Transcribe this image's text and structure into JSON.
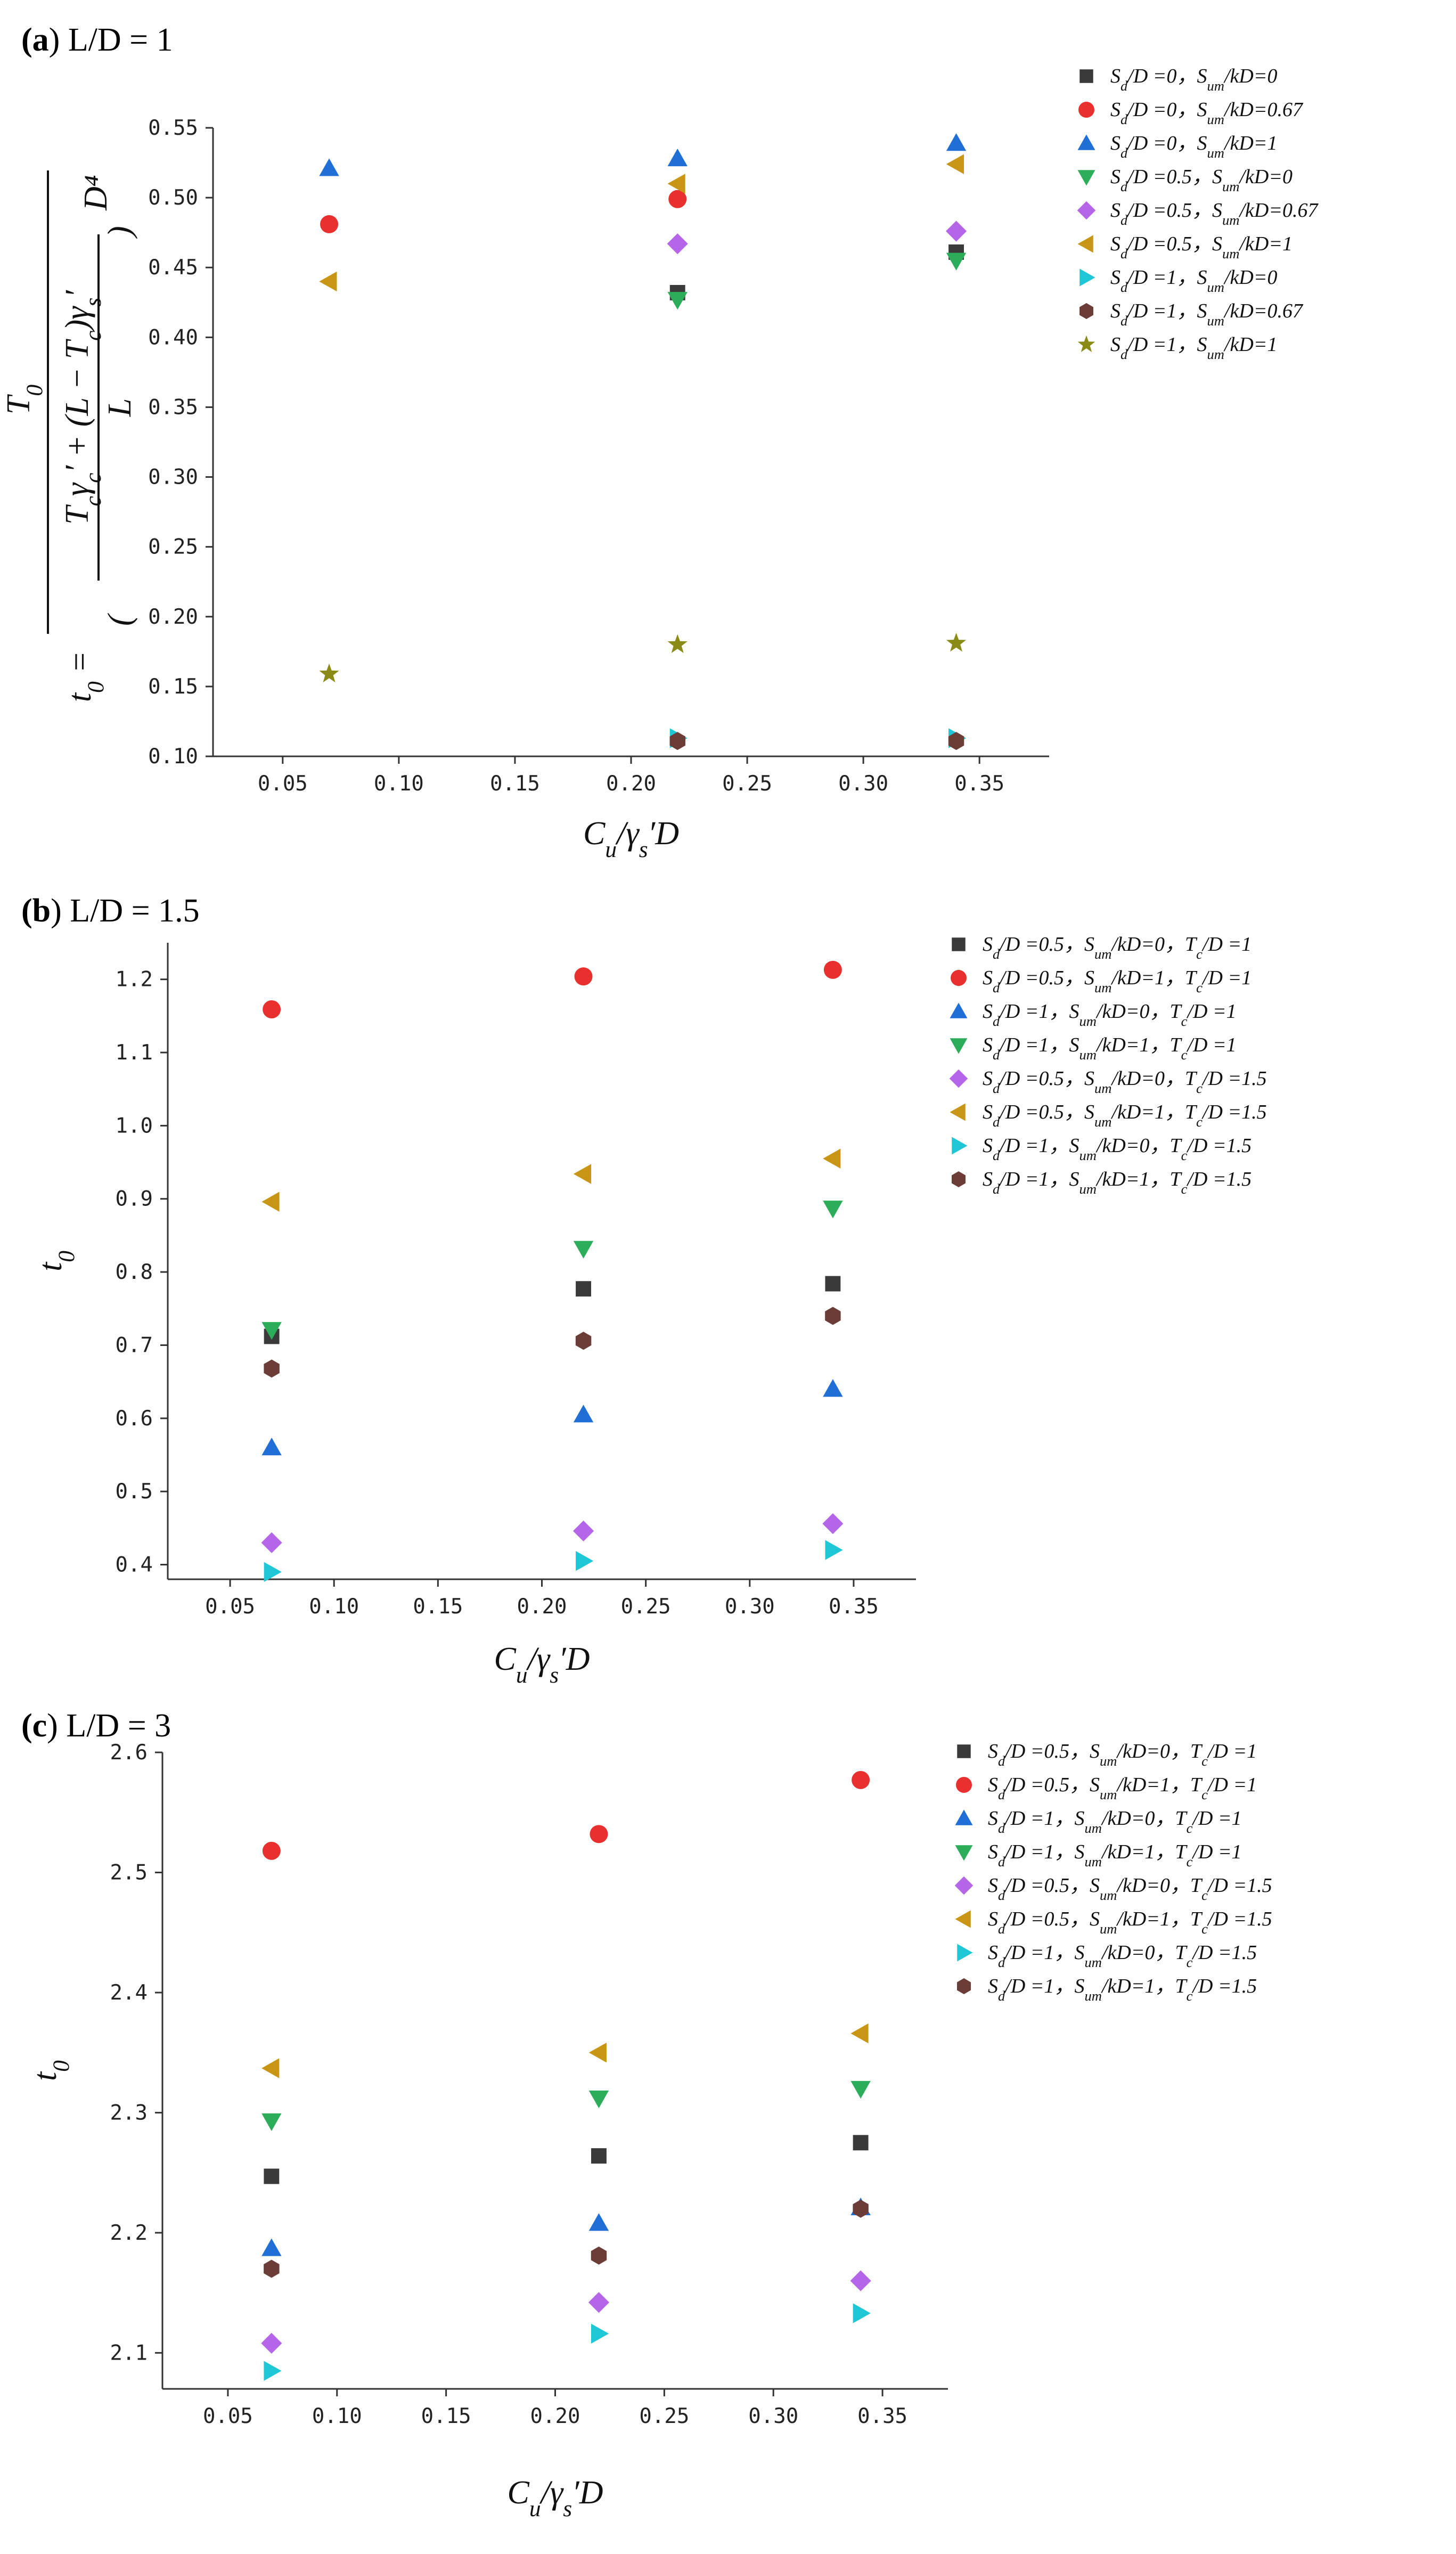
{
  "chart_data": [
    {
      "panel_label": "(a)",
      "panel_title": "L/D = 1",
      "type": "scatter",
      "xlabel": "C_u/γ_s′D",
      "ylabel": "t_0 = T_0 / ((T_cγ_c′ + (L − T_c)γ_s′)/L · D^4)",
      "ylabel_parts": {
        "lhs": "t",
        "lhs_sub": "0",
        "numerator": "T",
        "numerator_sub": "0",
        "denominator_line1": "T_cγ_c′ + (L − T_c)γ_s′",
        "denominator_line2": "L",
        "power": "D⁴"
      },
      "xlim": [
        0.02,
        0.38
      ],
      "ylim": [
        0.1,
        0.55
      ],
      "xticks": [
        "0.05",
        "0.10",
        "0.15",
        "0.20",
        "0.25",
        "0.30",
        "0.35"
      ],
      "yticks": [
        "0.10",
        "0.15",
        "0.20",
        "0.25",
        "0.30",
        "0.35",
        "0.40",
        "0.45",
        "0.50",
        "0.55"
      ],
      "legend_position": "top-right",
      "series": [
        {
          "name": "S_d/D =0，S_um/kD=0",
          "marker": "square",
          "color": "#3a3a3a",
          "x": [
            0.22,
            0.34
          ],
          "y": [
            0.432,
            0.461
          ]
        },
        {
          "name": "S_d/D =0，S_um/kD=0.67",
          "marker": "circle",
          "color": "#e8312f",
          "x": [
            0.07,
            0.22
          ],
          "y": [
            0.481,
            0.499
          ]
        },
        {
          "name": "S_d/D =0，S_um/kD=1",
          "marker": "triangle-up",
          "color": "#1f6fd6",
          "x": [
            0.07,
            0.22,
            0.34
          ],
          "y": [
            0.521,
            0.528,
            0.539
          ]
        },
        {
          "name": "S_d/D =0.5，S_um/kD=0",
          "marker": "triangle-down",
          "color": "#2bad5a",
          "x": [
            0.22,
            0.34
          ],
          "y": [
            0.427,
            0.455
          ]
        },
        {
          "name": "S_d/D =0.5，S_um/kD=0.67",
          "marker": "diamond",
          "color": "#b565e8",
          "x": [
            0.22,
            0.34
          ],
          "y": [
            0.467,
            0.476
          ]
        },
        {
          "name": "S_d/D =0.5，S_um/kD=1",
          "marker": "triangle-left",
          "color": "#c99515",
          "x": [
            0.07,
            0.22,
            0.34
          ],
          "y": [
            0.44,
            0.51,
            0.524
          ]
        },
        {
          "name": "S_d/D =1，S_um/kD=0",
          "marker": "triangle-right",
          "color": "#1fc6d6",
          "x": [
            0.22,
            0.34
          ],
          "y": [
            0.113,
            0.113
          ]
        },
        {
          "name": "S_d/D =1，S_um/kD=0.67",
          "marker": "hexagon",
          "color": "#6b3d36",
          "x": [
            0.22,
            0.34
          ],
          "y": [
            0.111,
            0.111
          ]
        },
        {
          "name": "S_d/D =1，S_um/kD=1",
          "marker": "star",
          "color": "#8a8a16",
          "x": [
            0.07,
            0.22,
            0.34
          ],
          "y": [
            0.159,
            0.18,
            0.181
          ]
        }
      ]
    },
    {
      "panel_label": "(b)",
      "panel_title": "L/D = 1.5",
      "type": "scatter",
      "xlabel": "C_u/γ_s′D",
      "ylabel": "t_0",
      "xlim": [
        0.02,
        0.38
      ],
      "ylim": [
        0.38,
        1.25
      ],
      "xticks": [
        "0.05",
        "0.10",
        "0.15",
        "0.20",
        "0.25",
        "0.30",
        "0.35"
      ],
      "yticks": [
        "0.4",
        "0.5",
        "0.6",
        "0.7",
        "0.8",
        "0.9",
        "1.0",
        "1.1",
        "1.2"
      ],
      "legend_position": "top-right",
      "series": [
        {
          "name": "S_d/D =0.5，S_um/kD=0，T_c/D =1",
          "marker": "square",
          "color": "#3a3a3a",
          "x": [
            0.07,
            0.22,
            0.34
          ],
          "y": [
            0.712,
            0.777,
            0.784
          ]
        },
        {
          "name": "S_d/D =0.5，S_um/kD=1，T_c/D =1",
          "marker": "circle",
          "color": "#e8312f",
          "x": [
            0.07,
            0.22,
            0.34
          ],
          "y": [
            1.159,
            1.204,
            1.213
          ]
        },
        {
          "name": "S_d/D =1，S_um/kD=0，T_c/D =1",
          "marker": "triangle-up",
          "color": "#1f6fd6",
          "x": [
            0.07,
            0.22,
            0.34
          ],
          "y": [
            0.56,
            0.605,
            0.64
          ]
        },
        {
          "name": "S_d/D =1，S_um/kD=1，T_c/D =1",
          "marker": "triangle-down",
          "color": "#2bad5a",
          "x": [
            0.07,
            0.22,
            0.34
          ],
          "y": [
            0.721,
            0.832,
            0.887
          ]
        },
        {
          "name": "S_d/D =0.5，S_um/kD=0，T_c/D =1.5",
          "marker": "diamond",
          "color": "#b565e8",
          "x": [
            0.07,
            0.22,
            0.34
          ],
          "y": [
            0.43,
            0.446,
            0.456
          ]
        },
        {
          "name": "S_d/D =0.5，S_um/kD=1，T_c/D =1.5",
          "marker": "triangle-left",
          "color": "#c99515",
          "x": [
            0.07,
            0.22,
            0.34
          ],
          "y": [
            0.896,
            0.934,
            0.955
          ]
        },
        {
          "name": "S_d/D =1，S_um/kD=0，T_c/D =1.5",
          "marker": "triangle-right",
          "color": "#1fc6d6",
          "x": [
            0.07,
            0.22,
            0.34
          ],
          "y": [
            0.39,
            0.405,
            0.42
          ]
        },
        {
          "name": "S_d/D =1，S_um/kD=1，T_c/D =1.5",
          "marker": "hexagon",
          "color": "#6b3d36",
          "x": [
            0.07,
            0.22,
            0.34
          ],
          "y": [
            0.668,
            0.706,
            0.74
          ]
        }
      ]
    },
    {
      "panel_label": "(c)",
      "panel_title": "L/D = 3",
      "type": "scatter",
      "xlabel": "C_u/γ_s′D",
      "ylabel": "t_0",
      "xlim": [
        0.02,
        0.38
      ],
      "ylim": [
        2.07,
        2.6
      ],
      "xticks": [
        "0.05",
        "0.10",
        "0.15",
        "0.20",
        "0.25",
        "0.30",
        "0.35"
      ],
      "yticks": [
        "2.1",
        "2.2",
        "2.3",
        "2.4",
        "2.5",
        "2.6"
      ],
      "legend_position": "top-right",
      "series": [
        {
          "name": "S_d/D =0.5，S_um/kD=0，T_c/D =1",
          "marker": "square",
          "color": "#3a3a3a",
          "x": [
            0.07,
            0.22,
            0.34
          ],
          "y": [
            2.247,
            2.264,
            2.275
          ]
        },
        {
          "name": "S_d/D =0.5，S_um/kD=1，T_c/D =1",
          "marker": "circle",
          "color": "#e8312f",
          "x": [
            0.07,
            0.22,
            0.34
          ],
          "y": [
            2.518,
            2.532,
            2.577
          ]
        },
        {
          "name": "S_d/D =1，S_um/kD=0，T_c/D =1",
          "marker": "triangle-up",
          "color": "#1f6fd6",
          "x": [
            0.07,
            0.22,
            0.34
          ],
          "y": [
            2.187,
            2.208,
            2.221
          ]
        },
        {
          "name": "S_d/D =1，S_um/kD=1，T_c/D =1",
          "marker": "triangle-down",
          "color": "#2bad5a",
          "x": [
            0.07,
            0.22,
            0.34
          ],
          "y": [
            2.293,
            2.312,
            2.32
          ]
        },
        {
          "name": "S_d/D =0.5，S_um/kD=0，T_c/D =1.5",
          "marker": "diamond",
          "color": "#b565e8",
          "x": [
            0.07,
            0.22,
            0.34
          ],
          "y": [
            2.108,
            2.142,
            2.16
          ]
        },
        {
          "name": "S_d/D =0.5，S_um/kD=1，T_c/D =1.5",
          "marker": "triangle-left",
          "color": "#c99515",
          "x": [
            0.07,
            0.22,
            0.34
          ],
          "y": [
            2.337,
            2.35,
            2.366
          ]
        },
        {
          "name": "S_d/D =1，S_um/kD=0，T_c/D =1.5",
          "marker": "triangle-right",
          "color": "#1fc6d6",
          "x": [
            0.07,
            0.22,
            0.34
          ],
          "y": [
            2.085,
            2.116,
            2.133
          ]
        },
        {
          "name": "S_d/D =1，S_um/kD=1，T_c/D =1.5",
          "marker": "hexagon",
          "color": "#6b3d36",
          "x": [
            0.07,
            0.22,
            0.34
          ],
          "y": [
            2.17,
            2.181,
            2.22
          ]
        }
      ]
    }
  ]
}
